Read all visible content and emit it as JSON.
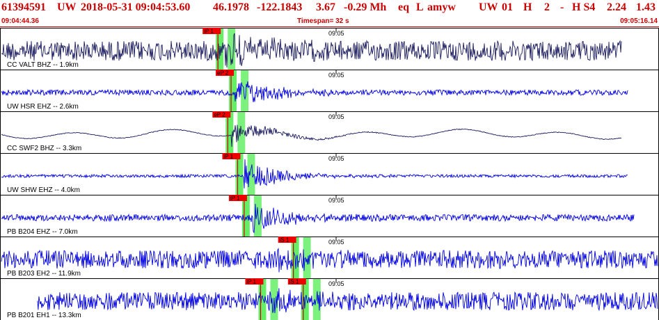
{
  "header": {
    "event_id": "61394591",
    "network": "UW",
    "datetime": "2018-05-31 09:04:53.60",
    "lat": "46.1978",
    "lon": "-122.1843",
    "depth": "3.67",
    "magnitude": "-0.29 Mh",
    "event_type": "eq",
    "review": "L",
    "source": "amyw",
    "network2": "UW",
    "version": "01",
    "field_h": "H",
    "field_2": "2",
    "field_dash": "-",
    "quality": "H S4",
    "val1": "2.24",
    "val2": "1.43"
  },
  "time_row": {
    "start": "09:04:44.36",
    "timespan": "Timespan=  32 s",
    "end": "09:05:16.14"
  },
  "colors": {
    "header_text": "#cc0000",
    "trace_dark": "#1a1a5e",
    "trace_blue": "#0000dd",
    "pick_flag": "#ee0000",
    "pick_window": "#66ee66"
  },
  "channels": [
    {
      "label": "CC VALT BHZ -- 1.9km",
      "tick": "09:05",
      "color": "dark",
      "amp": 0.55,
      "event_at": 0.34,
      "picks": [
        {
          "label": "iP 1",
          "t": 0.33
        }
      ]
    },
    {
      "label": "UW HSR EHZ -- 2.6km",
      "tick": "09:05",
      "color": "blue",
      "amp": 0.15,
      "event_at": 0.355,
      "picks": [
        {
          "label": "eP 2",
          "t": 0.35
        }
      ]
    },
    {
      "label": "CC SWF2 BHZ -- 3.3km",
      "tick": "09:05",
      "color": "dark",
      "amp": 0.12,
      "event_at": 0.35,
      "picks": [
        {
          "label": "eP 2",
          "t": 0.345
        }
      ]
    },
    {
      "label": "UW SHW EHZ -- 4.0km",
      "tick": "09:05",
      "color": "blue",
      "amp": 0.08,
      "event_at": 0.37,
      "picks": [
        {
          "label": "iP 1",
          "t": 0.36
        }
      ]
    },
    {
      "label": "PB B204 EHZ -- 7.0km",
      "tick": "09:05",
      "color": "blue",
      "amp": 0.18,
      "event_at": 0.38,
      "picks": [
        {
          "label": "iP 1",
          "t": 0.37
        }
      ]
    },
    {
      "label": "PB B203 EH2 -- 11.9km",
      "tick": "09:05",
      "color": "blue",
      "amp": 0.5,
      "event_at": 0.42,
      "picks": [
        {
          "label": "iS 1",
          "t": 0.445
        }
      ]
    },
    {
      "label": "PB B201 EH1 -- 13.3km",
      "tick": "09:05",
      "color": "blue",
      "amp": 0.5,
      "event_at": 0.4,
      "picks": [
        {
          "label": "iP 1",
          "t": 0.395
        },
        {
          "label": "iS 1",
          "t": 0.46
        }
      ]
    }
  ]
}
